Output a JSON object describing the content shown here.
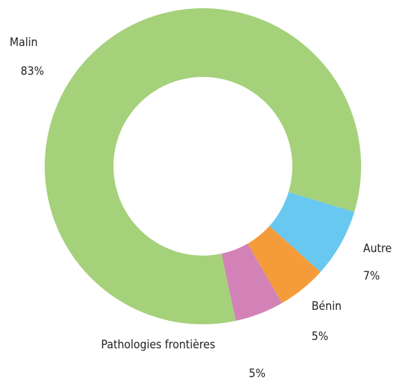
{
  "chart_data": {
    "type": "donut",
    "categories": [
      "Malin",
      "Autre",
      "Bénin",
      "Pathologies frontières"
    ],
    "values": [
      83,
      7,
      5,
      5
    ],
    "value_labels": [
      "83%",
      "7%",
      "5%",
      "5%"
    ],
    "colors": [
      "#a5d17a",
      "#69c8ef",
      "#f59c3a",
      "#d382b8"
    ]
  }
}
